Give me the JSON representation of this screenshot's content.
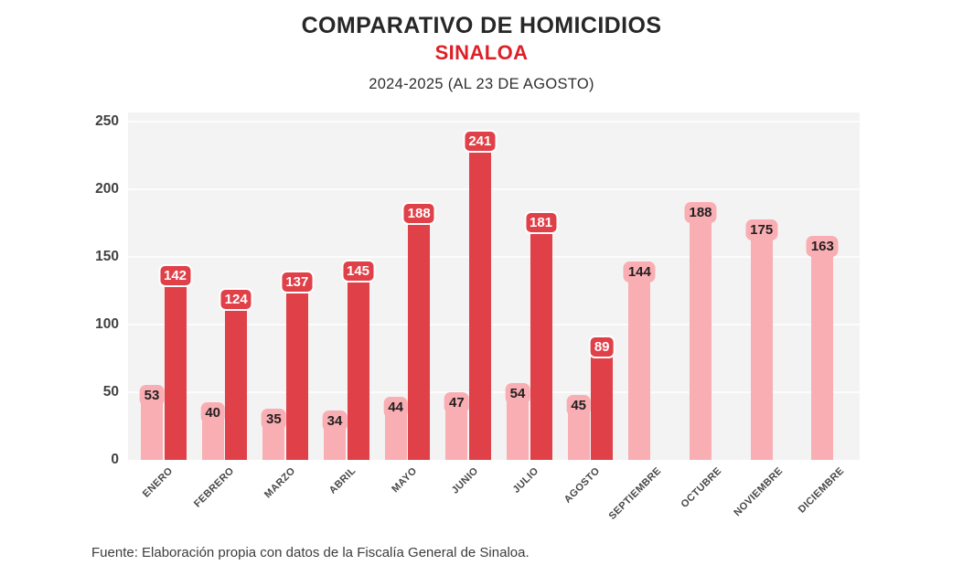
{
  "header": {
    "title": "COMPARATIVO DE HOMICIDIOS",
    "subtitle": "SINALOA",
    "period": "2024-2025 (AL 23 DE AGOSTO)"
  },
  "footer": {
    "source": "Fuente: Elaboración propia con datos de la Fiscalía General de Sinaloa."
  },
  "colors": {
    "subtitle_red": "#dd2027",
    "bar_pink": "#f8aeb3",
    "bar_red": "#e04048",
    "plot_bg": "#f4f3f4",
    "grid": "#fcfcfc",
    "value_label_dark": "#231f20",
    "value_label_white": "#ffffff"
  },
  "chart_data": {
    "type": "bar",
    "title": "COMPARATIVO DE HOMICIDIOS",
    "subtitle": "SINALOA",
    "note": "2024-2025 (AL 23 DE AGOSTO)",
    "source": "Fuente: Elaboración propia con datos de la Fiscalía General de Sinaloa.",
    "categories": [
      "ENERO",
      "FEBRERO",
      "MARZO",
      "ABRIL",
      "MAYO",
      "JUNIO",
      "JULIO",
      "AGOSTO",
      "SEPTIEMBRE",
      "OCTUBRE",
      "NOVIEMBRE",
      "DICIEMBRE"
    ],
    "series": [
      {
        "id": "pink",
        "color": "#f8aeb3",
        "label_color": "#231f20",
        "values": [
          53,
          40,
          35,
          34,
          44,
          47,
          54,
          45,
          144,
          188,
          175,
          163
        ]
      },
      {
        "id": "red",
        "color": "#e04048",
        "label_color": "#ffffff",
        "label_border": "#ffffff",
        "values": [
          142,
          124,
          137,
          145,
          188,
          241,
          181,
          89,
          null,
          null,
          null,
          null
        ]
      }
    ],
    "ylim": [
      0,
      250
    ],
    "yticks": [
      0,
      50,
      100,
      150,
      200,
      250
    ],
    "grid": true,
    "legend_position": "none",
    "value_labels": true
  }
}
